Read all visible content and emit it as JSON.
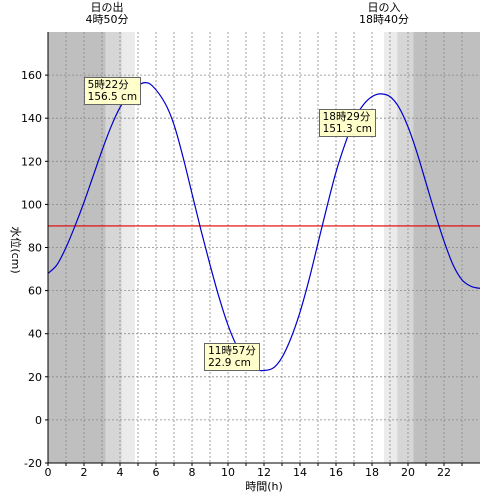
{
  "chart_data": {
    "type": "line",
    "xlabel": "時間(h)",
    "ylabel": "水位(cm)",
    "xlim": [
      0,
      24
    ],
    "ylim": [
      -20,
      180
    ],
    "xticks": [
      0,
      2,
      4,
      6,
      8,
      10,
      12,
      14,
      16,
      18,
      20,
      22
    ],
    "yticks": [
      -20,
      0,
      20,
      40,
      60,
      80,
      100,
      120,
      140,
      160
    ],
    "grid": true,
    "sunrise": {
      "label": "日の出",
      "time": "4時50分",
      "hour": 4.833
    },
    "sunset": {
      "label": "日の入",
      "time": "18時40分",
      "hour": 18.667
    },
    "twilight": {
      "dawn_start": 3.2,
      "dawn_mid": 4.1,
      "dusk_mid": 19.4,
      "dusk_end": 20.3
    },
    "reference_line": {
      "value": 90,
      "color": "#dd0000"
    },
    "series": [
      {
        "color": "#0000cc",
        "points": [
          [
            0,
            68
          ],
          [
            0.5,
            72
          ],
          [
            1,
            80
          ],
          [
            1.5,
            90
          ],
          [
            2,
            101
          ],
          [
            2.5,
            113
          ],
          [
            3,
            125
          ],
          [
            3.5,
            136
          ],
          [
            4,
            145
          ],
          [
            4.5,
            151
          ],
          [
            5,
            155
          ],
          [
            5.37,
            156.5
          ],
          [
            5.8,
            155
          ],
          [
            6.5,
            147
          ],
          [
            7,
            137
          ],
          [
            7.5,
            122
          ],
          [
            8,
            105
          ],
          [
            8.5,
            88
          ],
          [
            9,
            72
          ],
          [
            9.5,
            57
          ],
          [
            10,
            44
          ],
          [
            10.5,
            34
          ],
          [
            11,
            27
          ],
          [
            11.5,
            23.5
          ],
          [
            11.95,
            22.9
          ],
          [
            12.5,
            24
          ],
          [
            13,
            29
          ],
          [
            13.5,
            38
          ],
          [
            14,
            50
          ],
          [
            14.5,
            65
          ],
          [
            15,
            82
          ],
          [
            15.5,
            99
          ],
          [
            16,
            115
          ],
          [
            16.5,
            128
          ],
          [
            17,
            139
          ],
          [
            17.5,
            146
          ],
          [
            18,
            150
          ],
          [
            18.48,
            151.3
          ],
          [
            19,
            150
          ],
          [
            19.5,
            145
          ],
          [
            20,
            136
          ],
          [
            20.5,
            124
          ],
          [
            21,
            110
          ],
          [
            21.5,
            96
          ],
          [
            22,
            83
          ],
          [
            22.5,
            72
          ],
          [
            23,
            65
          ],
          [
            23.5,
            62
          ],
          [
            24,
            61
          ]
        ]
      }
    ],
    "annotations": [
      {
        "time": "5時22分",
        "value": "156.5 cm",
        "x": 5.37,
        "y": 156.5
      },
      {
        "time": "11時57分",
        "value": "22.9 cm",
        "x": 11.95,
        "y": 22.9
      },
      {
        "time": "18時29分",
        "value": "151.3 cm",
        "x": 18.48,
        "y": 151.3
      }
    ]
  }
}
